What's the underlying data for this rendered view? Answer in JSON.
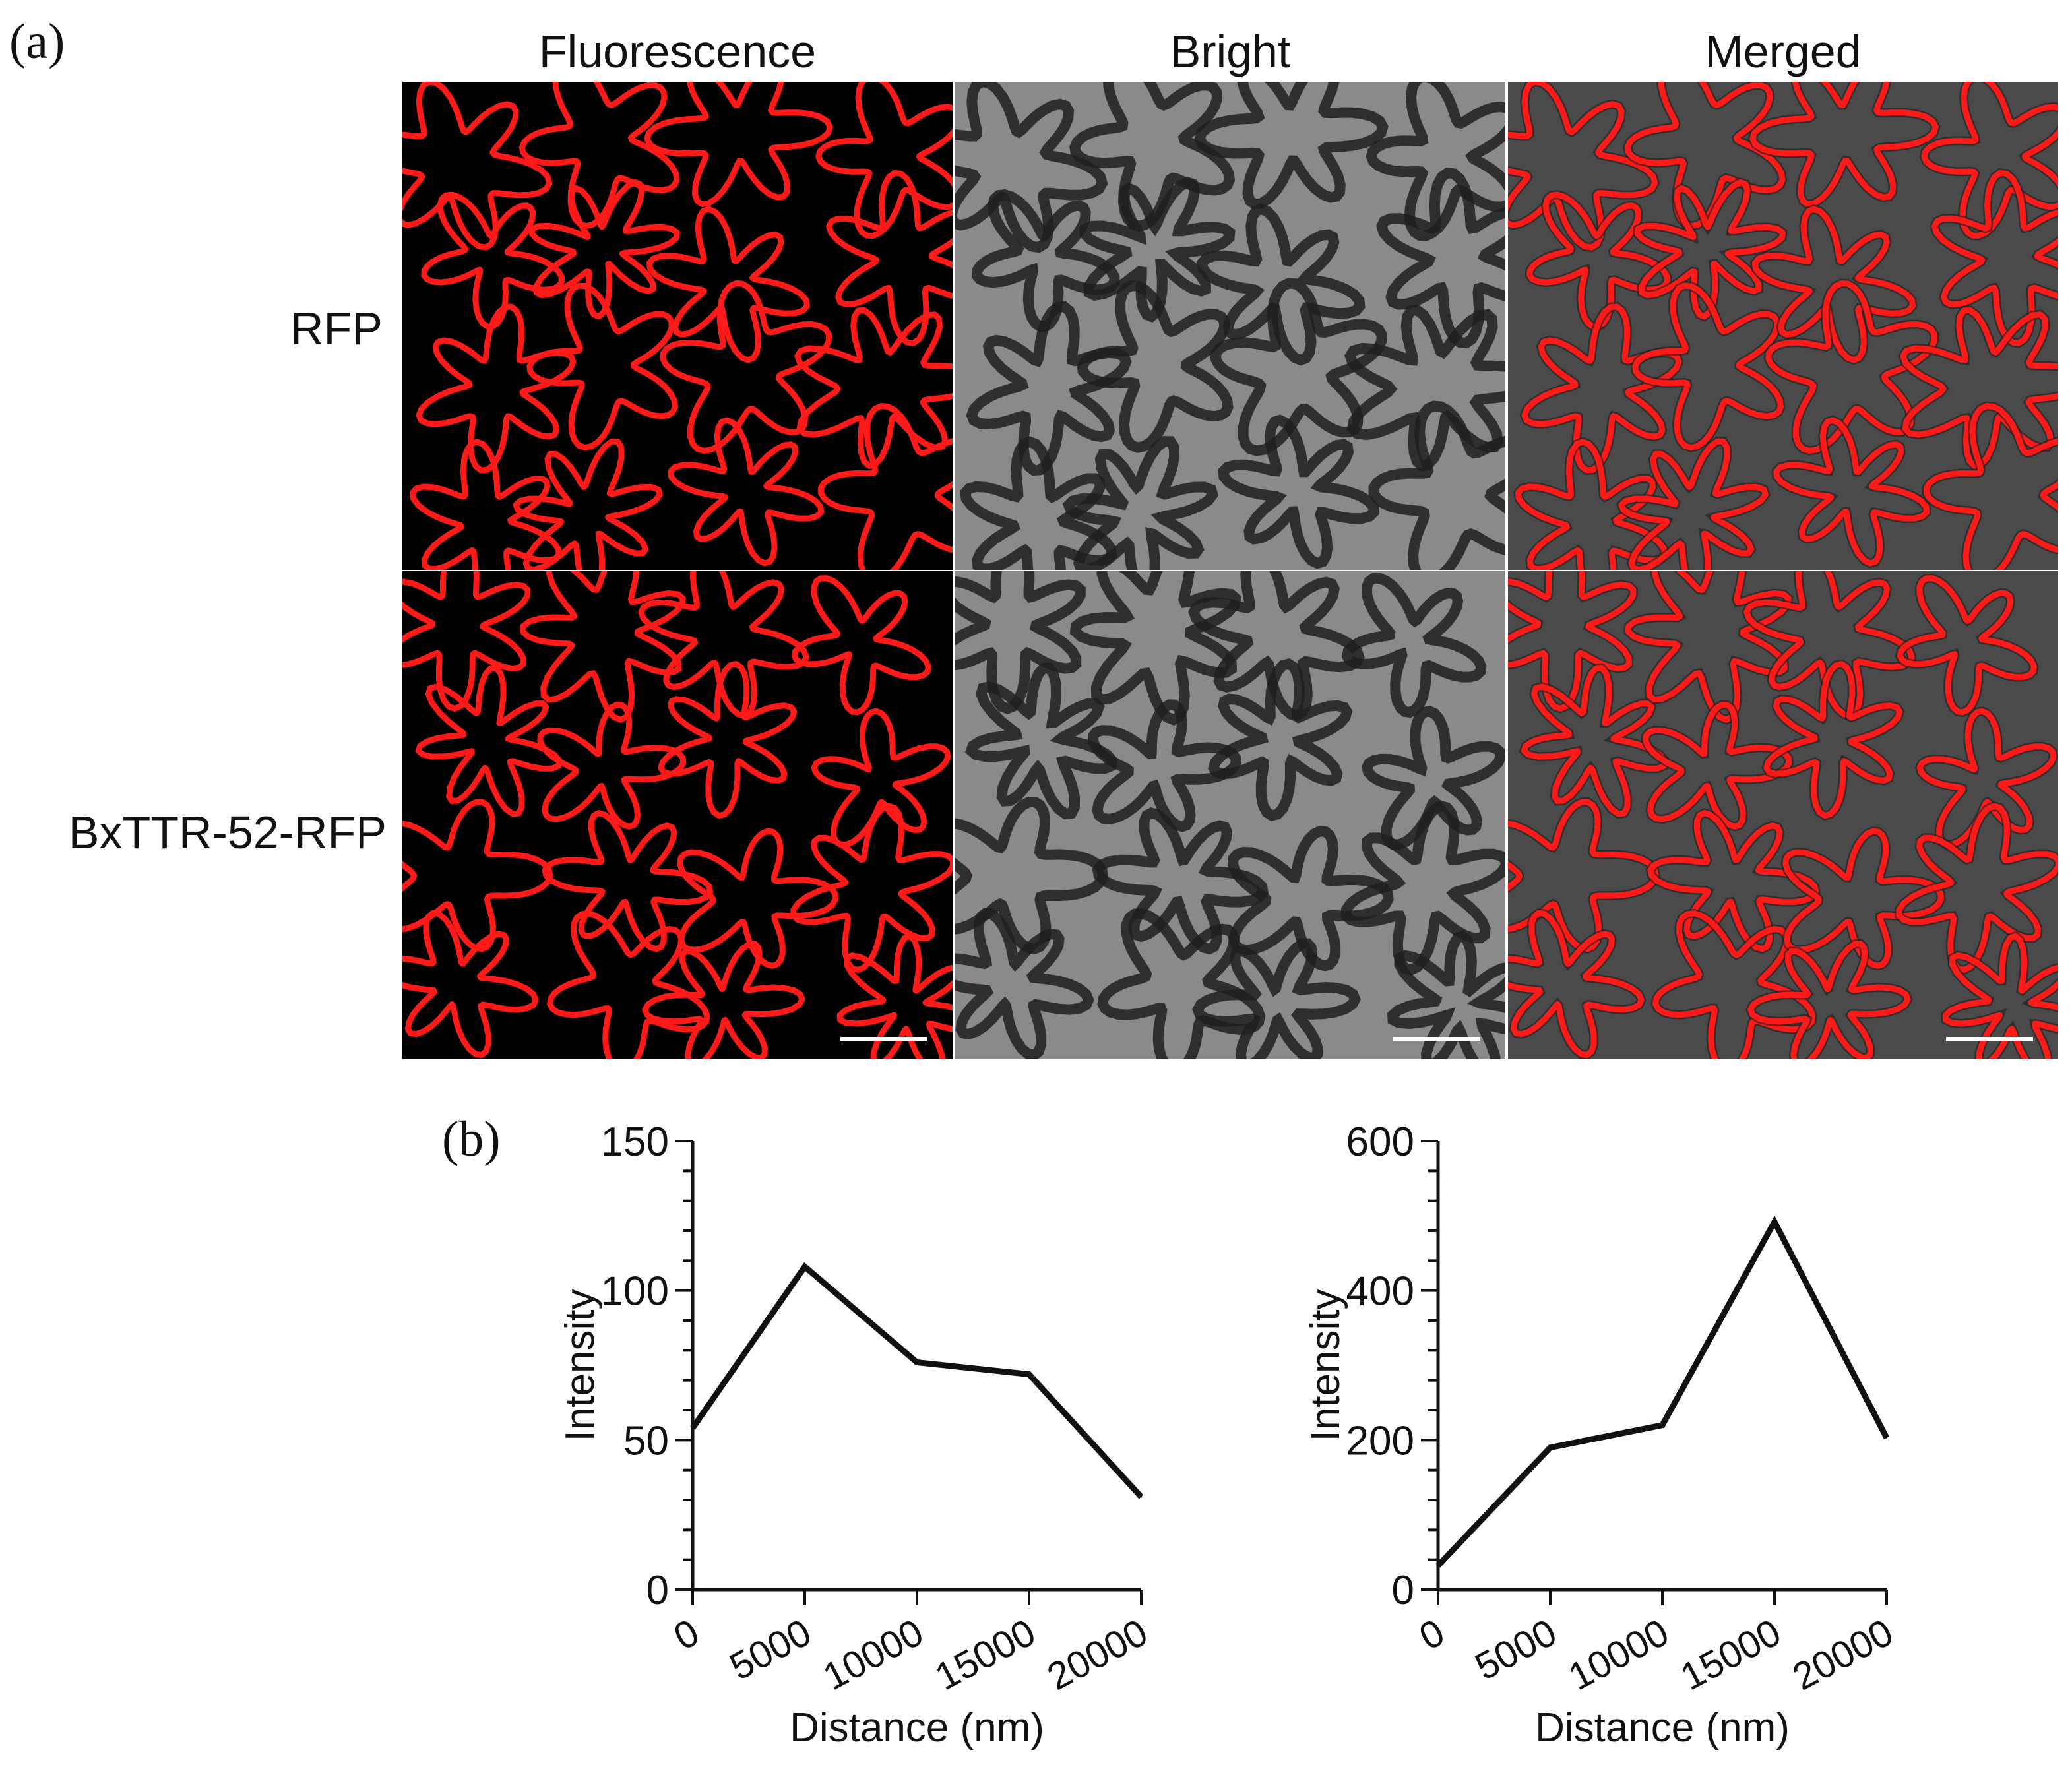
{
  "figure": {
    "panel_a_label": "(a)",
    "panel_b_label": "(b)",
    "columns": [
      "Fluorescence",
      "Bright",
      "Merged"
    ],
    "rows": [
      "RFP",
      "BxTTR-52-RFP"
    ],
    "colors": {
      "fluorescence": "#ff1a1a",
      "background": "#000000",
      "bright_wall": "#1e1e1e",
      "bright_cell": "#8a8a8a"
    }
  },
  "chart_data": [
    {
      "type": "line",
      "title": "",
      "xlabel": "Distance (nm)",
      "ylabel": "Intensity",
      "x": [
        0,
        5000,
        10000,
        15000,
        20000
      ],
      "series": [
        {
          "values": [
            54,
            108,
            76,
            72,
            31
          ]
        }
      ],
      "xlim": [
        0,
        20000
      ],
      "ylim": [
        0,
        150
      ],
      "yticks": [
        0,
        50,
        100,
        150
      ],
      "xticks": [
        "0",
        "5000",
        "10000",
        "15000",
        "20000"
      ],
      "grid": false
    },
    {
      "type": "line",
      "title": "",
      "xlabel": "Distance (nm)",
      "ylabel": "Intensity",
      "x": [
        0,
        5000,
        10000,
        15000,
        20000
      ],
      "series": [
        {
          "values": [
            32,
            190,
            220,
            492,
            203
          ]
        }
      ],
      "xlim": [
        0,
        20000
      ],
      "ylim": [
        0,
        600
      ],
      "yticks": [
        0,
        200,
        400,
        600
      ],
      "xticks": [
        "0",
        "5000",
        "10000",
        "15000",
        "20000"
      ],
      "grid": false
    }
  ]
}
